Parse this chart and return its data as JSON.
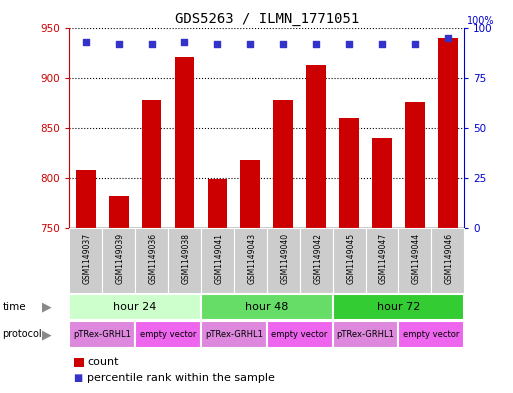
{
  "title": "GDS5263 / ILMN_1771051",
  "samples": [
    "GSM1149037",
    "GSM1149039",
    "GSM1149036",
    "GSM1149038",
    "GSM1149041",
    "GSM1149043",
    "GSM1149040",
    "GSM1149042",
    "GSM1149045",
    "GSM1149047",
    "GSM1149044",
    "GSM1149046"
  ],
  "counts": [
    808,
    782,
    878,
    921,
    799,
    818,
    878,
    913,
    860,
    840,
    876,
    940
  ],
  "percentile_ranks": [
    93,
    92,
    92,
    93,
    92,
    92,
    92,
    92,
    92,
    92,
    92,
    95
  ],
  "ylim_left": [
    750,
    950
  ],
  "ylim_right": [
    0,
    100
  ],
  "yticks_left": [
    750,
    800,
    850,
    900,
    950
  ],
  "yticks_right": [
    0,
    25,
    50,
    75,
    100
  ],
  "bar_color": "#cc0000",
  "dot_color": "#3333cc",
  "bar_width": 0.6,
  "time_groups": [
    {
      "label": "hour 24",
      "start": 0,
      "end": 3,
      "color": "#ccffcc"
    },
    {
      "label": "hour 48",
      "start": 4,
      "end": 7,
      "color": "#66dd66"
    },
    {
      "label": "hour 72",
      "start": 8,
      "end": 11,
      "color": "#33cc33"
    }
  ],
  "protocol_groups": [
    {
      "label": "pTRex-GRHL1",
      "start": 0,
      "end": 1,
      "color": "#dd88dd"
    },
    {
      "label": "empty vector",
      "start": 2,
      "end": 3,
      "color": "#ee66ee"
    },
    {
      "label": "pTRex-GRHL1",
      "start": 4,
      "end": 5,
      "color": "#dd88dd"
    },
    {
      "label": "empty vector",
      "start": 6,
      "end": 7,
      "color": "#ee66ee"
    },
    {
      "label": "pTRex-GRHL1",
      "start": 8,
      "end": 9,
      "color": "#dd88dd"
    },
    {
      "label": "empty vector",
      "start": 10,
      "end": 11,
      "color": "#ee66ee"
    }
  ],
  "legend_count_label": "count",
  "legend_percentile_label": "percentile rank within the sample",
  "background_color": "#ffffff",
  "grid_color": "#000000",
  "left_axis_color": "#cc0000",
  "right_axis_color": "#0000cc",
  "sample_box_color": "#cccccc",
  "arrow_color": "#888888",
  "label_color": "#444444"
}
